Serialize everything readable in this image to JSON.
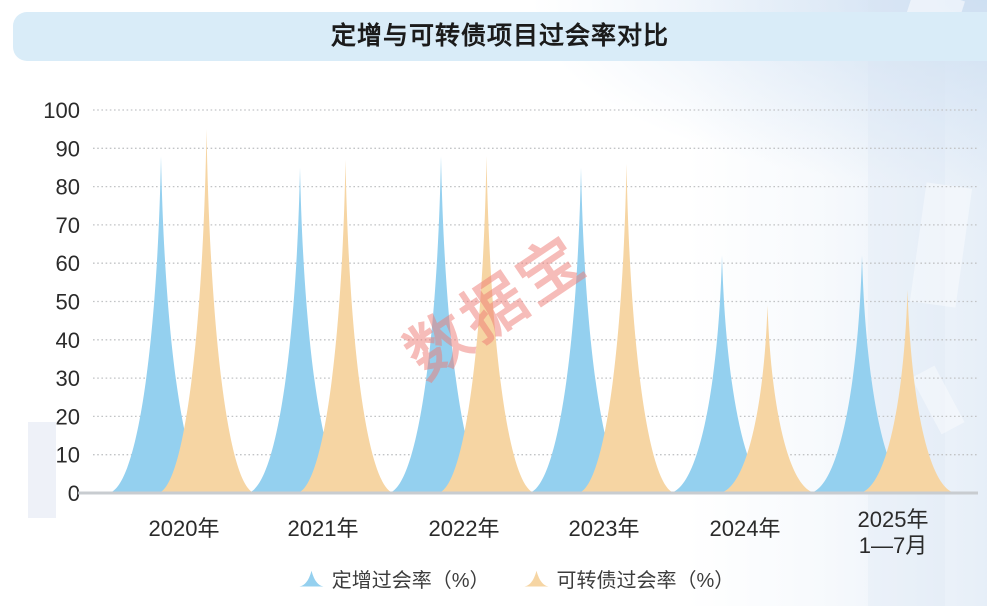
{
  "title": "定增与可转债项目过会率对比",
  "watermark": "数据宝",
  "colors": {
    "series_blue": "#94d0ef",
    "series_orange": "#f6d5a3",
    "title_bar_bg": "#d9ecf8",
    "grid_line": "#c2c4c6",
    "baseline": "#c8ccd0",
    "axis_text": "#2b2b2b",
    "watermark_text": "rgba(238,122,116,0.50)"
  },
  "chart_data": {
    "type": "area",
    "shape": "concave-spike-peaks",
    "title": "定增与可转债项目过会率对比",
    "categories": [
      "2020年",
      "2021年",
      "2022年",
      "2023年",
      "2024年",
      "2025年\n1—7月"
    ],
    "series": [
      {
        "name": "定增过会率（%）",
        "color": "#94d0ef",
        "values": [
          88,
          85,
          88,
          85,
          62,
          62
        ]
      },
      {
        "name": "可转债过会率（%）",
        "color": "#f6d5a3",
        "values": [
          95,
          87,
          88,
          86,
          49,
          53
        ]
      }
    ],
    "xlabel": "",
    "ylabel": "",
    "ylim": [
      0,
      100
    ],
    "yticks": [
      0,
      10,
      20,
      30,
      40,
      50,
      60,
      70,
      80,
      90,
      100
    ],
    "grid": "horizontal dotted",
    "legend_position": "bottom"
  }
}
